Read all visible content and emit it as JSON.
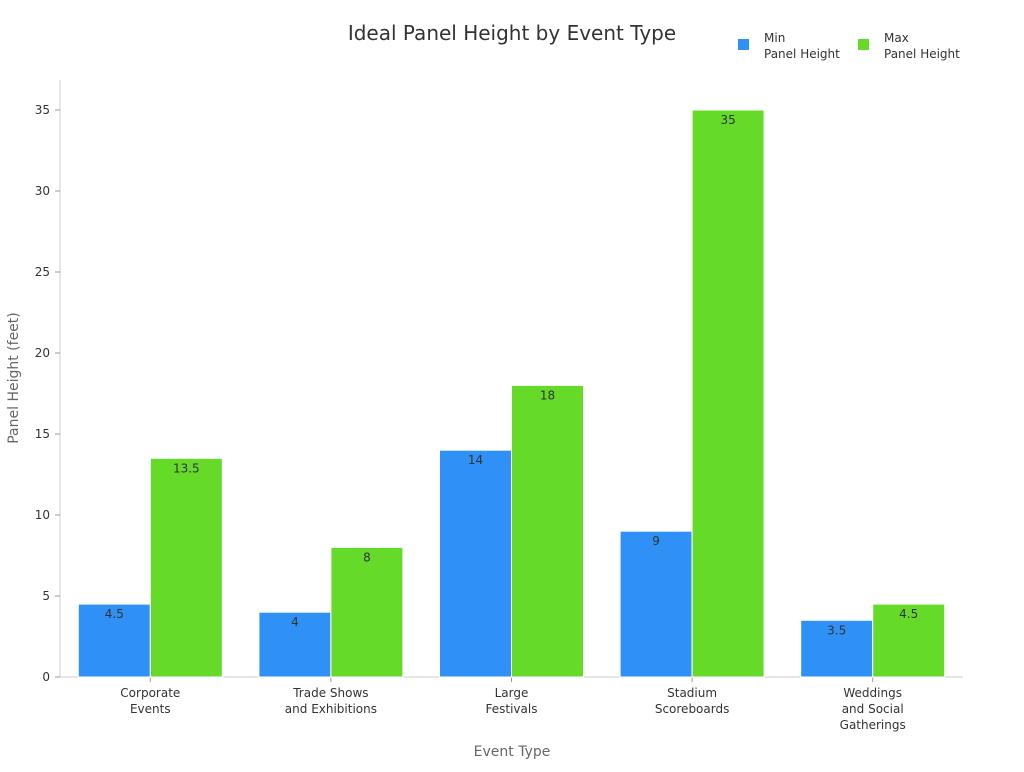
{
  "chart_data": {
    "type": "bar",
    "title": "Ideal Panel Height by Event Type",
    "xlabel": "Event Type",
    "ylabel": "Panel Height (feet)",
    "ylim": [
      0,
      37
    ],
    "yticks": [
      0,
      5,
      10,
      15,
      20,
      25,
      30,
      35
    ],
    "categories": [
      [
        "Corporate",
        "Events"
      ],
      [
        "Trade Shows",
        "and Exhibitions"
      ],
      [
        "Large",
        "Festivals"
      ],
      [
        "Stadium",
        "Scoreboards"
      ],
      [
        "Weddings",
        "and Social",
        "Gatherings"
      ]
    ],
    "series": [
      {
        "name": [
          "Min",
          "Panel Height"
        ],
        "color": "#2f91f5",
        "values": [
          4.5,
          4,
          14,
          9,
          3.5
        ]
      },
      {
        "name": [
          "Max",
          "Panel Height"
        ],
        "color": "#66da29",
        "values": [
          13.5,
          8,
          18,
          35,
          4.5
        ]
      }
    ],
    "legend": "top-right",
    "grid": false
  }
}
